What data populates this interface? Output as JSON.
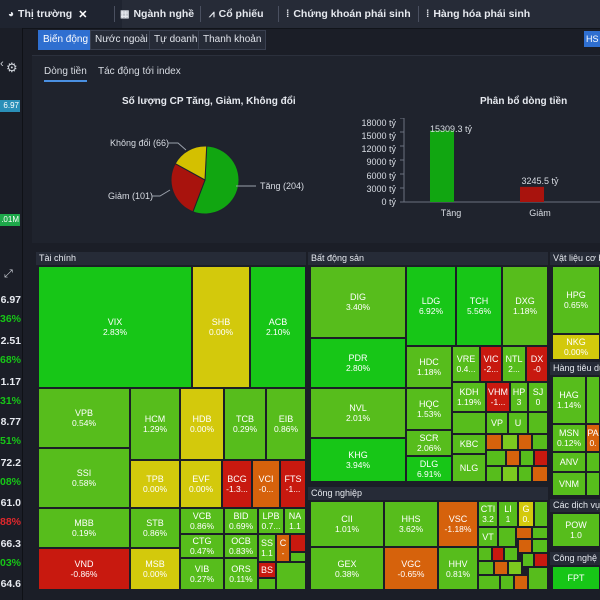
{
  "tabs": [
    {
      "label": "Thị trường",
      "icon": "market-icon",
      "active": true
    },
    {
      "label": "Ngành nghề",
      "icon": "calendar-icon"
    },
    {
      "label": "Cổ phiếu",
      "icon": "chart-icon"
    },
    {
      "label": "Chứng khoán phái sinh",
      "icon": "derivatives-icon"
    },
    {
      "label": "Hàng hóa phái sinh",
      "icon": "commodity-icon"
    }
  ],
  "left_strip": {
    "values": [
      "6.97",
      "6.97",
      "36%",
      "2.51",
      "68%",
      "1.17",
      "31%",
      "8.77",
      "51%",
      "72.2",
      "08%",
      "61.0",
      "88%",
      "66.3",
      "03%",
      "64.6"
    ],
    "badges": [
      "6.97",
      ".01M"
    ]
  },
  "filters": [
    "Biến động",
    "Nước ngoài",
    "Tự doanh",
    "Thanh khoản"
  ],
  "filter_right": "HS",
  "subtabs": [
    "Dòng tiền",
    "Tác động tới index"
  ],
  "pie": {
    "title": "Số lượng CP Tăng, Giảm, Không đổi",
    "labels": [
      "Không đổi (66)",
      "Giảm (101)",
      "Tăng (204)"
    ]
  },
  "bar": {
    "title": "Phân bổ dòng tiền",
    "yticks": [
      "18000 tỷ",
      "15000 tỷ",
      "12000 tỷ",
      "9000 tỷ",
      "6000 tỷ",
      "3000 tỷ",
      "0 tỷ"
    ],
    "data_labels": [
      "15309.3 tỷ",
      "3245.5 tỷ"
    ]
  },
  "chart_data": [
    {
      "type": "pie",
      "title": "Số lượng CP Tăng, Giảm, Không đổi",
      "categories": [
        "Tăng",
        "Giảm",
        "Không đổi"
      ],
      "values": [
        204,
        101,
        66
      ],
      "colors": [
        "#11a611",
        "#a8130d",
        "#d4c000"
      ]
    },
    {
      "type": "bar",
      "title": "Phân bổ dòng tiền",
      "categories": [
        "Tăng",
        "Giảm"
      ],
      "values": [
        15309.3,
        3245.5
      ],
      "colors": [
        "#11a611",
        "#a8130d"
      ],
      "ylim": [
        0,
        18000
      ]
    }
  ],
  "sectors": {
    "tai_chinh": "Tài chính",
    "bat_dong_san": "Bất động sản",
    "vat_lieu": "Vật liệu cơ bả",
    "cong_nghiep": "Công nghiệp",
    "hang_tieu_dung": "Hàng tiêu dù",
    "cac_dich_vu": "Các dịch vụ",
    "cong_nghe": "Công nghệ"
  },
  "stocks": {
    "VIX": {
      "sym": "VIX",
      "pct": "2.83%"
    },
    "SHB": {
      "sym": "SHB",
      "pct": "0.00%"
    },
    "ACB": {
      "sym": "ACB",
      "pct": "2.10%"
    },
    "VPB": {
      "sym": "VPB",
      "pct": "0.54%"
    },
    "HCM": {
      "sym": "HCM",
      "pct": "1.29%"
    },
    "HDB": {
      "sym": "HDB",
      "pct": "0.00%"
    },
    "TCB": {
      "sym": "TCB",
      "pct": "0.29%"
    },
    "EIB": {
      "sym": "EIB",
      "pct": "0.86%"
    },
    "SSI": {
      "sym": "SSI",
      "pct": "0.58%"
    },
    "TPB": {
      "sym": "TPB",
      "pct": "0.00%"
    },
    "EVF": {
      "sym": "EVF",
      "pct": "0.00%"
    },
    "BCG": {
      "sym": "BCG",
      "pct": "-1.3..."
    },
    "VCI": {
      "sym": "VCI",
      "pct": "-0..."
    },
    "FTS": {
      "sym": "FTS",
      "pct": "-1..."
    },
    "MBB": {
      "sym": "MBB",
      "pct": "0.19%"
    },
    "STB": {
      "sym": "STB",
      "pct": "0.86%"
    },
    "VCB": {
      "sym": "VCB",
      "pct": "0.86%"
    },
    "BID": {
      "sym": "BID",
      "pct": "0.69%"
    },
    "LPB": {
      "sym": "LPB",
      "pct": "0.7..."
    },
    "NA": {
      "sym": "NA",
      "pct": "1.1"
    },
    "CTG": {
      "sym": "CTG",
      "pct": "0.47%"
    },
    "OCB": {
      "sym": "OCB",
      "pct": "0.83%"
    },
    "SS": {
      "sym": "SS",
      "pct": "1.1"
    },
    "C": {
      "sym": "C",
      "pct": "-"
    },
    "VND": {
      "sym": "VND",
      "pct": "-0.86%"
    },
    "MSB": {
      "sym": "MSB",
      "pct": "0.00%"
    },
    "VIB": {
      "sym": "VIB",
      "pct": "0.27%"
    },
    "ORS": {
      "sym": "ORS",
      "pct": "0.11%"
    },
    "BS": {
      "sym": "BS",
      "pct": ""
    },
    "DIG": {
      "sym": "DIG",
      "pct": "3.40%"
    },
    "LDG": {
      "sym": "LDG",
      "pct": "6.92%"
    },
    "TCH": {
      "sym": "TCH",
      "pct": "5.56%"
    },
    "DXG": {
      "sym": "DXG",
      "pct": "1.18%"
    },
    "PDR": {
      "sym": "PDR",
      "pct": "2.80%"
    },
    "HDC": {
      "sym": "HDC",
      "pct": "1.18%"
    },
    "VRE": {
      "sym": "VRE",
      "pct": "0.4..."
    },
    "VIC": {
      "sym": "VIC",
      "pct": "-2..."
    },
    "NTL": {
      "sym": "NTL",
      "pct": "2..."
    },
    "DX": {
      "sym": "DX",
      "pct": "-0"
    },
    "NVL": {
      "sym": "NVL",
      "pct": "2.01%"
    },
    "HQC": {
      "sym": "HQC",
      "pct": "1.53%"
    },
    "KDH": {
      "sym": "KDH",
      "pct": "1.19%"
    },
    "VHM": {
      "sym": "VHM",
      "pct": "-1..."
    },
    "HP": {
      "sym": "HP",
      "pct": "3"
    },
    "SJ": {
      "sym": "SJ",
      "pct": "0"
    },
    "KHG": {
      "sym": "KHG",
      "pct": "3.94%"
    },
    "SCR": {
      "sym": "SCR",
      "pct": "2.06%"
    },
    "KBC": {
      "sym": "KBC",
      "pct": ""
    },
    "VP": {
      "sym": "VP",
      "pct": ""
    },
    "U": {
      "sym": "U",
      "pct": ""
    },
    "DLG": {
      "sym": "DLG",
      "pct": "6.91%"
    },
    "NLG": {
      "sym": "NLG",
      "pct": ""
    },
    "CII": {
      "sym": "CII",
      "pct": "1.01%"
    },
    "HHS": {
      "sym": "HHS",
      "pct": "3.62%"
    },
    "VSC": {
      "sym": "VSC",
      "pct": "-1.18%"
    },
    "CTI": {
      "sym": "CTI",
      "pct": "3.2"
    },
    "LI": {
      "sym": "LI",
      "pct": "1"
    },
    "G": {
      "sym": "G",
      "pct": "0."
    },
    "VT": {
      "sym": "VT",
      "pct": ""
    },
    "GEX": {
      "sym": "GEX",
      "pct": "0.38%"
    },
    "VGC": {
      "sym": "VGC",
      "pct": "-0.65%"
    },
    "HHV": {
      "sym": "HHV",
      "pct": "0.81%"
    },
    "HPG": {
      "sym": "HPG",
      "pct": "0.65%"
    },
    "NKG": {
      "sym": "NKG",
      "pct": "0.00%"
    },
    "HAG": {
      "sym": "HAG",
      "pct": "1.14%"
    },
    "PA": {
      "sym": "PA",
      "pct": "0."
    },
    "MSN": {
      "sym": "MSN",
      "pct": "0.12%"
    },
    "ANV": {
      "sym": "ANV",
      "pct": ""
    },
    "VNM": {
      "sym": "VNM",
      "pct": ""
    },
    "POW": {
      "sym": "POW",
      "pct": "1.0"
    },
    "FPT": {
      "sym": "FPT",
      "pct": ""
    }
  }
}
